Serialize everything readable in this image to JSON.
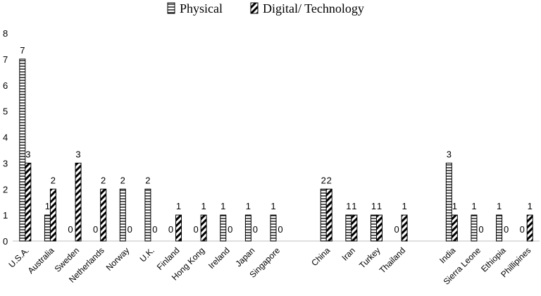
{
  "chart_data": {
    "type": "bar",
    "ylim": [
      0,
      8
    ],
    "yticks": [
      0,
      1,
      2,
      3,
      4,
      5,
      6,
      7,
      8
    ],
    "grid": false,
    "legend_position": "top",
    "categories": [
      "U.S.A.",
      "Australia",
      "Sweden",
      "Netherlands",
      "Norway",
      "U.K.",
      "Finland",
      "Hong Kong",
      "Ireland",
      "Japan",
      "Singapore",
      "",
      "China",
      "Iran",
      "Turkey",
      "Thailand",
      "",
      "India",
      "Sierra Leone",
      "Ethiopia",
      "Phillipines"
    ],
    "series": [
      {
        "name": "Physical",
        "pattern": "horizontal-lines",
        "values": [
          7,
          1,
          0,
          0,
          2,
          2,
          0,
          0,
          1,
          1,
          1,
          null,
          2,
          1,
          1,
          0,
          null,
          3,
          1,
          1,
          0
        ]
      },
      {
        "name": "Digital/ Technology",
        "pattern": "diagonal-stripes",
        "values": [
          3,
          2,
          3,
          2,
          0,
          0,
          1,
          1,
          0,
          0,
          0,
          null,
          2,
          1,
          1,
          1,
          null,
          1,
          0,
          0,
          1
        ]
      }
    ]
  }
}
